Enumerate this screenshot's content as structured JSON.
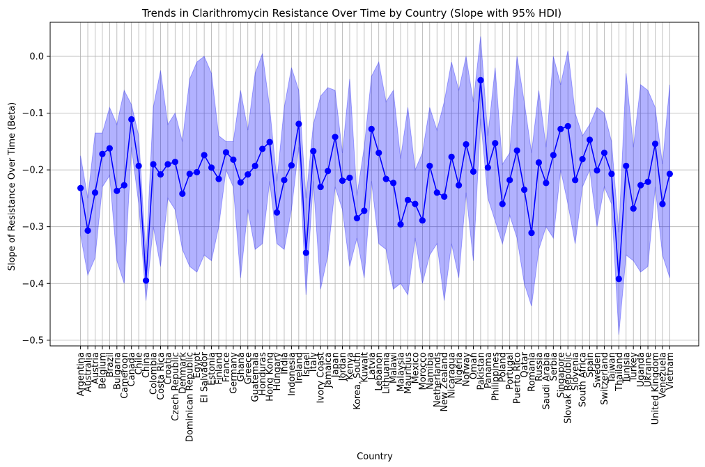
{
  "chart_data": {
    "type": "line",
    "title": "Trends in Clarithromycin Resistance Over Time by Country (Slope with 95% HDI)",
    "xlabel": "Country",
    "ylabel": "Slope of Resistance Over Time (Beta)",
    "ylim": [
      -0.51,
      0.06
    ],
    "yticks": [
      0.0,
      -0.1,
      -0.2,
      -0.3,
      -0.4,
      -0.5
    ],
    "ytick_labels": [
      "0.0",
      "−0.1",
      "−0.2",
      "−0.3",
      "−0.4",
      "−0.5"
    ],
    "grid": true,
    "colors": {
      "line": "#0000ff",
      "band": "#0000ff"
    },
    "categories": [
      "Argentina",
      "Australia",
      "Austria",
      "Belgium",
      "Brazil",
      "Bulgaria",
      "Cameroon",
      "Canada",
      "Chile",
      "China",
      "Colombia",
      "Costa Rica",
      "Croatia",
      "Czech Republic",
      "Denmark",
      "Dominican Republic",
      "Egypt",
      "El Salvador",
      "Estonia",
      "Finland",
      "France",
      "Germany",
      "Ghana",
      "Greece",
      "Guatemala",
      "Honduras",
      "Hong Kong",
      "Hungary",
      "India",
      "Indonesia",
      "Ireland",
      "Israel",
      "Italy",
      "Ivory Coast",
      "Jamaica",
      "Japan",
      "Jordan",
      "Kenya",
      "Korea, South",
      "Kuwait",
      "Latvia",
      "Lebanon",
      "Lithuania",
      "Malawi",
      "Malaysia",
      "Mauritius",
      "Mexico",
      "Morocco",
      "Namibia",
      "Netherlands",
      "New Zealand",
      "Nicaragua",
      "Nigeria",
      "Norway",
      "Oman",
      "Pakistan",
      "Panama",
      "Philippines",
      "Poland",
      "Portugal",
      "Puerto Rico",
      "Qatar",
      "Romania",
      "Russia",
      "Saudi Arabia",
      "Serbia",
      "Singapore",
      "Slovak Republic",
      "Slovenia",
      "South Africa",
      "Spain",
      "Sweden",
      "Switzerland",
      "Taiwan",
      "Thailand",
      "Tunisia",
      "Turkey",
      "Uganda",
      "Ukraine",
      "United Kingdom",
      "Venezuela",
      "Vietnam"
    ],
    "series": [
      {
        "values": [
          -0.232,
          -0.307,
          -0.24,
          -0.172,
          -0.162,
          -0.237,
          -0.227,
          -0.111,
          -0.193,
          -0.395,
          -0.19,
          -0.208,
          -0.19,
          -0.186,
          -0.242,
          -0.207,
          -0.204,
          -0.174,
          -0.196,
          -0.216,
          -0.169,
          -0.182,
          -0.222,
          -0.208,
          -0.193,
          -0.163,
          -0.151,
          -0.275,
          -0.218,
          -0.192,
          -0.119,
          -0.346,
          -0.167,
          -0.23,
          -0.202,
          -0.142,
          -0.219,
          -0.214,
          -0.285,
          -0.272,
          -0.128,
          -0.17,
          -0.216,
          -0.223,
          -0.296,
          -0.253,
          -0.26,
          -0.289,
          -0.193,
          -0.24,
          -0.247,
          -0.177,
          -0.227,
          -0.155,
          -0.203,
          -0.042,
          -0.196,
          -0.153,
          -0.26,
          -0.218,
          -0.166,
          -0.235,
          -0.311,
          -0.187,
          -0.223,
          -0.174,
          -0.128,
          -0.123,
          -0.218,
          -0.181,
          -0.147,
          -0.201,
          -0.17,
          -0.207,
          -0.392,
          -0.193,
          -0.268,
          -0.227,
          -0.221,
          -0.154,
          -0.26,
          -0.207
        ],
        "lower": [
          -0.315,
          -0.385,
          -0.355,
          -0.23,
          -0.21,
          -0.36,
          -0.4,
          -0.16,
          -0.26,
          -0.43,
          -0.3,
          -0.37,
          -0.25,
          -0.27,
          -0.34,
          -0.37,
          -0.38,
          -0.35,
          -0.36,
          -0.3,
          -0.2,
          -0.23,
          -0.39,
          -0.27,
          -0.34,
          -0.33,
          -0.22,
          -0.33,
          -0.34,
          -0.27,
          -0.16,
          -0.42,
          -0.22,
          -0.41,
          -0.35,
          -0.23,
          -0.27,
          -0.37,
          -0.32,
          -0.39,
          -0.22,
          -0.33,
          -0.34,
          -0.41,
          -0.4,
          -0.42,
          -0.32,
          -0.4,
          -0.35,
          -0.33,
          -0.43,
          -0.33,
          -0.39,
          -0.24,
          -0.36,
          -0.11,
          -0.25,
          -0.29,
          -0.33,
          -0.28,
          -0.32,
          -0.4,
          -0.44,
          -0.34,
          -0.3,
          -0.32,
          -0.2,
          -0.26,
          -0.33,
          -0.23,
          -0.2,
          -0.3,
          -0.23,
          -0.26,
          -0.49,
          -0.35,
          -0.36,
          -0.38,
          -0.37,
          -0.23,
          -0.35,
          -0.39
        ],
        "upper": [
          -0.175,
          -0.25,
          -0.135,
          -0.135,
          -0.09,
          -0.12,
          -0.06,
          -0.085,
          -0.14,
          -0.355,
          -0.09,
          -0.025,
          -0.12,
          -0.1,
          -0.15,
          -0.04,
          -0.01,
          0.0,
          -0.03,
          -0.14,
          -0.15,
          -0.15,
          -0.06,
          -0.13,
          -0.03,
          0.005,
          -0.09,
          -0.22,
          -0.09,
          -0.02,
          -0.06,
          -0.25,
          -0.12,
          -0.07,
          -0.055,
          -0.06,
          -0.17,
          -0.04,
          -0.245,
          -0.16,
          -0.035,
          -0.01,
          -0.08,
          -0.06,
          -0.18,
          -0.09,
          -0.2,
          -0.17,
          -0.09,
          -0.13,
          -0.08,
          -0.01,
          -0.06,
          0.0,
          -0.08,
          0.035,
          -0.14,
          -0.02,
          -0.19,
          -0.17,
          0.0,
          -0.08,
          -0.17,
          -0.06,
          -0.16,
          0.0,
          -0.05,
          0.01,
          -0.1,
          -0.14,
          -0.12,
          -0.09,
          -0.1,
          -0.15,
          -0.31,
          -0.03,
          -0.16,
          -0.05,
          -0.06,
          -0.09,
          -0.19,
          -0.05
        ]
      }
    ]
  }
}
